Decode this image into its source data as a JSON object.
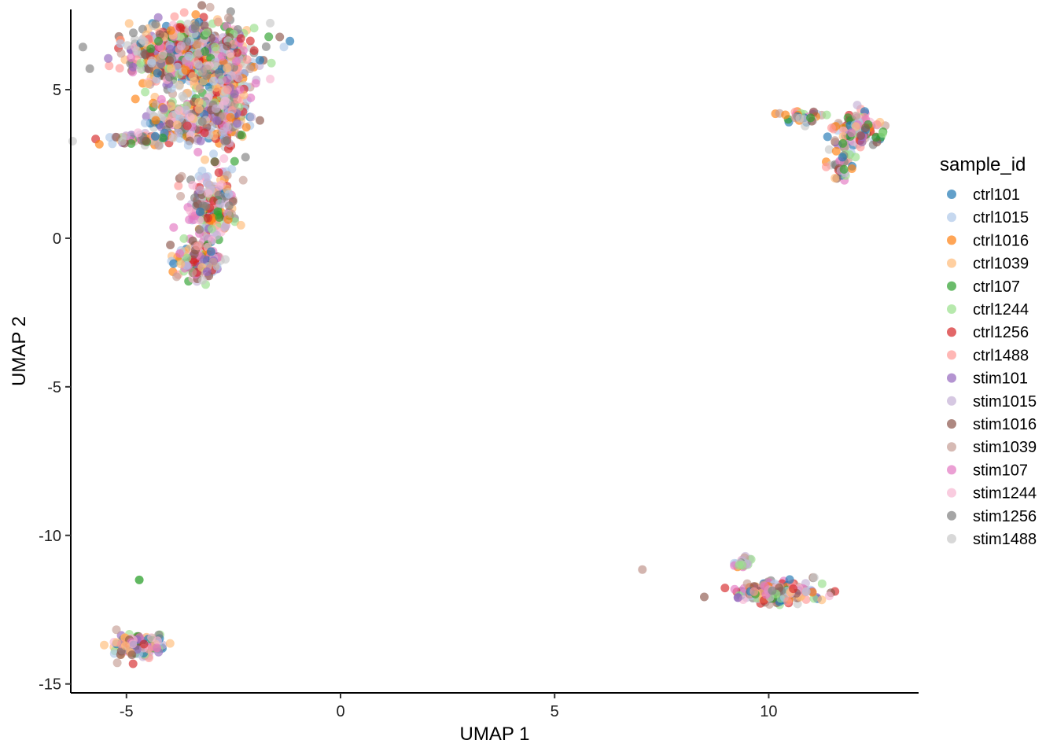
{
  "chart_data": {
    "type": "scatter",
    "xlabel": "UMAP 1",
    "ylabel": "UMAP 2",
    "xlim": [
      -6.3,
      13.5
    ],
    "ylim": [
      -15.3,
      7.7
    ],
    "x_ticks": [
      -5,
      0,
      5,
      10
    ],
    "y_ticks": [
      -15,
      -10,
      -5,
      0,
      5
    ],
    "x_tick_labels": [
      "-5",
      "0",
      "5",
      "10"
    ],
    "y_tick_labels": [
      "-15",
      "-10",
      "-5",
      "0",
      "5"
    ],
    "grid": false,
    "legend": {
      "title": "sample_id",
      "position": "right"
    },
    "series": [
      {
        "name": "ctrl101",
        "color": "#1F77B4"
      },
      {
        "name": "ctrl1015",
        "color": "#AEC7E8"
      },
      {
        "name": "ctrl1016",
        "color": "#FF7F0E"
      },
      {
        "name": "ctrl1039",
        "color": "#FFBB78"
      },
      {
        "name": "ctrl107",
        "color": "#2CA02C"
      },
      {
        "name": "ctrl1244",
        "color": "#98DF8A"
      },
      {
        "name": "ctrl1256",
        "color": "#D62728"
      },
      {
        "name": "ctrl1488",
        "color": "#FF9896"
      },
      {
        "name": "stim101",
        "color": "#9467BD"
      },
      {
        "name": "stim1015",
        "color": "#C5B0D5"
      },
      {
        "name": "stim1016",
        "color": "#8C564B"
      },
      {
        "name": "stim1039",
        "color": "#C49C94"
      },
      {
        "name": "stim107",
        "color": "#E377C2"
      },
      {
        "name": "stim1244",
        "color": "#F7B6D2"
      },
      {
        "name": "stim1256",
        "color": "#7F7F7F"
      },
      {
        "name": "stim1488",
        "color": "#C7C7C7"
      }
    ],
    "clusters": [
      {
        "center": [
          -3.5,
          6.2
        ],
        "spread": [
          0.9,
          0.7
        ],
        "count": 700
      },
      {
        "center": [
          -2.7,
          4.5
        ],
        "spread": [
          0.35,
          1.0
        ],
        "count": 250
      },
      {
        "center": [
          -3.6,
          4.0
        ],
        "spread": [
          0.6,
          0.45
        ],
        "count": 200
      },
      {
        "center": [
          -4.6,
          3.35
        ],
        "spread": [
          0.5,
          0.12
        ],
        "count": 70
      },
      {
        "center": [
          -3.0,
          1.0
        ],
        "spread": [
          0.35,
          0.8
        ],
        "count": 220
      },
      {
        "center": [
          -3.3,
          -0.8
        ],
        "spread": [
          0.35,
          0.35
        ],
        "count": 150
      },
      {
        "center": [
          12.1,
          3.7
        ],
        "spread": [
          0.3,
          0.35
        ],
        "count": 150
      },
      {
        "center": [
          10.7,
          4.1
        ],
        "spread": [
          0.3,
          0.12
        ],
        "count": 40
      },
      {
        "center": [
          11.7,
          2.6
        ],
        "spread": [
          0.2,
          0.4
        ],
        "count": 40
      },
      {
        "center": [
          10.2,
          -11.9
        ],
        "spread": [
          0.55,
          0.22
        ],
        "count": 230
      },
      {
        "center": [
          9.4,
          -10.9
        ],
        "spread": [
          0.15,
          0.15
        ],
        "count": 25
      },
      {
        "center": [
          -4.75,
          -13.7
        ],
        "spread": [
          0.35,
          0.25
        ],
        "count": 150
      }
    ],
    "outliers": [
      {
        "x": 7.05,
        "y": -11.15,
        "series": "stim1039"
      },
      {
        "x": -4.7,
        "y": -11.5,
        "series": "ctrl107"
      },
      {
        "x": -4.5,
        "y": 5.2,
        "series": "ctrl1039"
      }
    ]
  }
}
